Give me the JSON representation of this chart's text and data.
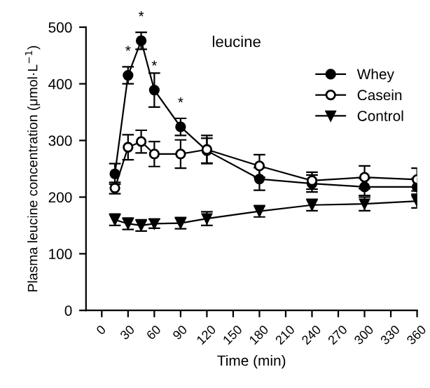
{
  "chart_data": {
    "type": "line",
    "xlabel": "Time (min)",
    "ylabel": "Plasma leucine concentration (μmol·L$^{−1}$)",
    "x": [
      15,
      30,
      45,
      60,
      90,
      120,
      180,
      240,
      300,
      360
    ],
    "series": [
      {
        "name": "Whey",
        "color": "#000000",
        "marker": "circle",
        "values": [
          241,
          415,
          476,
          389,
          324,
          282,
          232,
          224,
          218,
          218
        ],
        "errors": [
          18,
          15,
          15,
          30,
          15,
          22,
          20,
          15,
          15,
          15
        ]
      },
      {
        "name": "Casein",
        "color": "#ffffff",
        "marker": "circle",
        "values": [
          216,
          288,
          298,
          276,
          276,
          284,
          255,
          229,
          235,
          231
        ],
        "errors": [
          10,
          22,
          20,
          22,
          25,
          25,
          20,
          15,
          20,
          20
        ]
      },
      {
        "name": "Control",
        "color": "#000000",
        "marker": "triangle",
        "values": [
          160,
          153,
          150,
          153,
          154,
          162,
          175,
          186,
          188,
          193
        ],
        "errors": [
          10,
          10,
          10,
          8,
          10,
          12,
          10,
          10,
          12,
          12
        ]
      }
    ],
    "xlim": [
      -18,
      360
    ],
    "xticks": [
      0,
      30,
      60,
      90,
      120,
      150,
      180,
      210,
      240,
      270,
      300,
      330,
      360
    ],
    "ylim": [
      0,
      500
    ],
    "yticks": [
      0,
      100,
      200,
      300,
      400,
      500
    ],
    "annotations": [
      "leucine",
      {
        "text": "*",
        "x": 30,
        "y": 415
      },
      {
        "text": "*",
        "x": 45,
        "y": 476
      },
      {
        "text": "*",
        "x": 60,
        "y": 389
      },
      {
        "text": "*",
        "x": 90,
        "y": 324
      }
    ],
    "legend": "top right",
    "grid": false
  }
}
